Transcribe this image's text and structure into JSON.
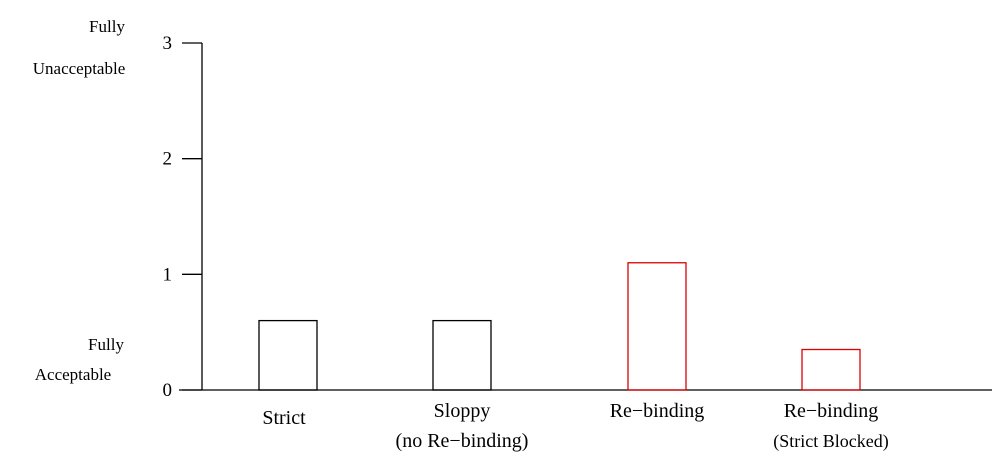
{
  "chart_data": {
    "type": "bar",
    "categories": [
      {
        "lines": [
          "Strict"
        ]
      },
      {
        "lines": [
          "Sloppy",
          "(no Re−binding)"
        ]
      },
      {
        "lines": [
          "Re−binding"
        ]
      },
      {
        "lines": [
          "Re−binding",
          "(Strict Blocked)"
        ]
      }
    ],
    "values": [
      0.6,
      0.6,
      1.1,
      0.35
    ],
    "bar_colors": [
      "#000000",
      "#000000",
      "#dd0000",
      "#dd0000"
    ],
    "ylim": [
      0,
      3
    ],
    "yticks": [
      0,
      1,
      2,
      3
    ],
    "ytick_labels": [
      "0",
      "1",
      "2",
      "3"
    ],
    "top_label": [
      "Fully",
      "Unacceptable"
    ],
    "bottom_label": [
      "Fully",
      "Acceptable"
    ],
    "grid": false,
    "bar_fill": "none"
  }
}
